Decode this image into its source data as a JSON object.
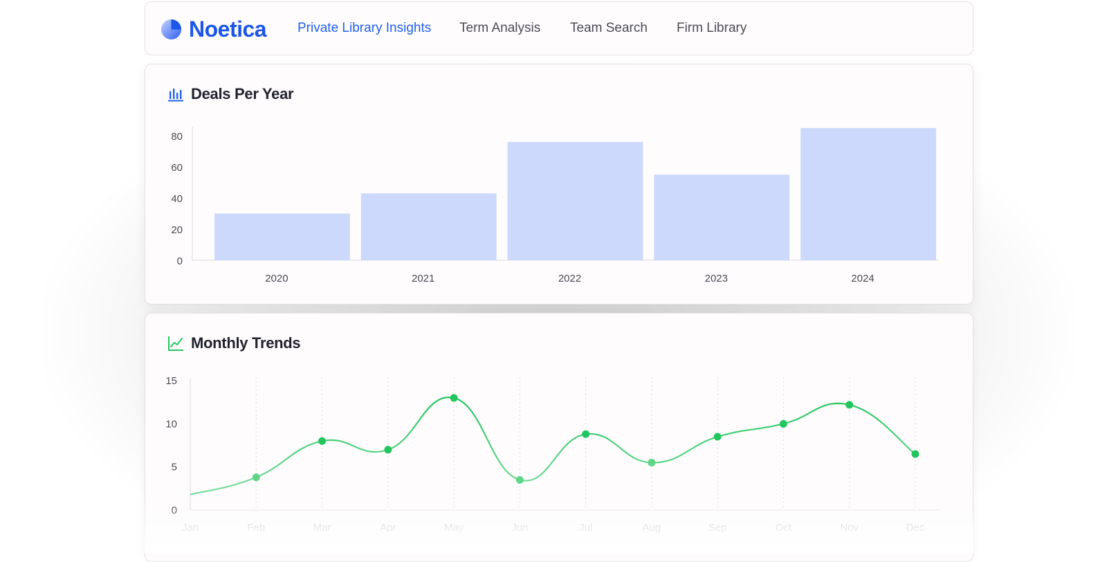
{
  "brand": {
    "name": "Noetica"
  },
  "nav": {
    "items": [
      {
        "label": "Private Library Insights",
        "active": true
      },
      {
        "label": "Term Analysis",
        "active": false
      },
      {
        "label": "Team Search",
        "active": false
      },
      {
        "label": "Firm Library",
        "active": false
      }
    ]
  },
  "colors": {
    "brand": "#1a56e8",
    "bar_fill": "#ccd9fc",
    "line": "#2fc45e",
    "point": "#22c55e"
  },
  "chart_data": [
    {
      "type": "bar",
      "title": "Deals Per Year",
      "title_icon": "bar-chart-icon",
      "categories": [
        "2020",
        "2021",
        "2022",
        "2023",
        "2024"
      ],
      "values": [
        30,
        43,
        76,
        55,
        85
      ],
      "ylim": [
        0,
        85
      ],
      "yticks": [
        0,
        20,
        40,
        60,
        80
      ],
      "xlabel": "",
      "ylabel": "",
      "grid": false,
      "legend": "none"
    },
    {
      "type": "line",
      "title": "Monthly Trends",
      "title_icon": "line-chart-icon",
      "categories": [
        "Jan",
        "Feb",
        "Mar",
        "Apr",
        "May",
        "Jun",
        "Jul",
        "Aug",
        "Sep",
        "Oct",
        "Nov",
        "Dec"
      ],
      "values": [
        1.8,
        3.8,
        8.0,
        7.0,
        13.0,
        3.5,
        8.8,
        5.5,
        8.5,
        10.0,
        12.2,
        6.5
      ],
      "ylim": [
        0,
        15
      ],
      "yticks": [
        0,
        5,
        10,
        15
      ],
      "xlabel": "",
      "ylabel": "",
      "grid": "vertical-dotted",
      "smooth": true,
      "legend": "none"
    }
  ]
}
